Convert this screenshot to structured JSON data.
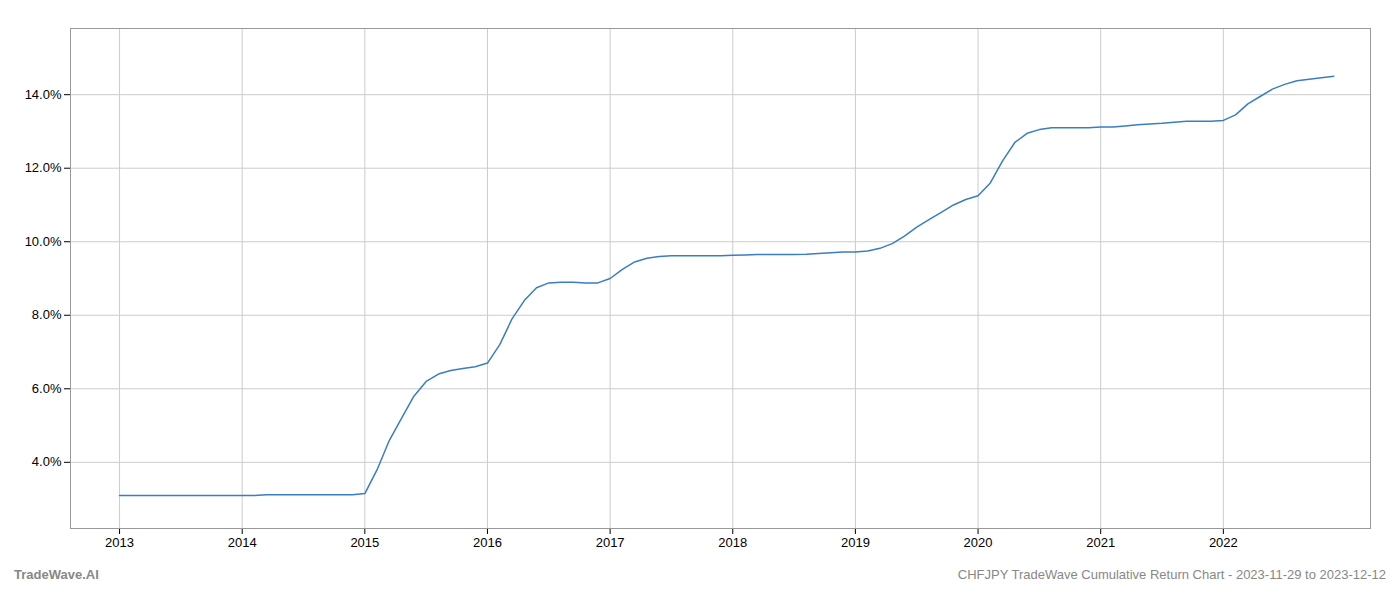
{
  "chart_data": {
    "type": "line",
    "annotations": [
      "TradeWave.AI",
      "CHFJPY TradeWave Cumulative Return Chart - 2023-11-29 to 2023-12-12"
    ],
    "x": [
      2013.0,
      2013.1,
      2013.2,
      2013.3,
      2013.4,
      2013.5,
      2013.6,
      2013.7,
      2013.8,
      2013.9,
      2014.0,
      2014.1,
      2014.2,
      2014.3,
      2014.4,
      2014.5,
      2014.6,
      2014.7,
      2014.8,
      2014.9,
      2015.0,
      2015.1,
      2015.2,
      2015.3,
      2015.4,
      2015.5,
      2015.6,
      2015.7,
      2015.8,
      2015.9,
      2016.0,
      2016.1,
      2016.2,
      2016.3,
      2016.4,
      2016.5,
      2016.6,
      2016.7,
      2016.8,
      2016.9,
      2017.0,
      2017.1,
      2017.2,
      2017.3,
      2017.4,
      2017.5,
      2017.6,
      2017.7,
      2017.8,
      2017.9,
      2018.0,
      2018.1,
      2018.2,
      2018.3,
      2018.4,
      2018.5,
      2018.6,
      2018.7,
      2018.8,
      2018.9,
      2019.0,
      2019.1,
      2019.2,
      2019.3,
      2019.4,
      2019.5,
      2019.6,
      2019.7,
      2019.8,
      2019.9,
      2020.0,
      2020.1,
      2020.2,
      2020.3,
      2020.4,
      2020.5,
      2020.6,
      2020.7,
      2020.8,
      2020.9,
      2021.0,
      2021.1,
      2021.2,
      2021.3,
      2021.4,
      2021.5,
      2021.6,
      2021.7,
      2021.8,
      2021.9,
      2022.0,
      2022.1,
      2022.2,
      2022.3,
      2022.4,
      2022.5,
      2022.6,
      2022.7,
      2022.8,
      2022.9
    ],
    "values": [
      3.1,
      3.1,
      3.1,
      3.1,
      3.1,
      3.1,
      3.1,
      3.1,
      3.1,
      3.1,
      3.1,
      3.1,
      3.12,
      3.12,
      3.12,
      3.12,
      3.12,
      3.12,
      3.12,
      3.12,
      3.15,
      3.8,
      4.6,
      5.2,
      5.8,
      6.2,
      6.4,
      6.5,
      6.55,
      6.6,
      6.7,
      7.2,
      7.9,
      8.4,
      8.75,
      8.88,
      8.9,
      8.9,
      8.88,
      8.88,
      9.0,
      9.25,
      9.45,
      9.55,
      9.6,
      9.62,
      9.62,
      9.62,
      9.62,
      9.62,
      9.63,
      9.64,
      9.65,
      9.65,
      9.65,
      9.65,
      9.66,
      9.68,
      9.7,
      9.72,
      9.72,
      9.75,
      9.82,
      9.95,
      10.15,
      10.4,
      10.6,
      10.8,
      11.0,
      11.15,
      11.25,
      11.6,
      12.2,
      12.7,
      12.95,
      13.05,
      13.1,
      13.1,
      13.1,
      13.1,
      13.12,
      13.12,
      13.15,
      13.18,
      13.2,
      13.22,
      13.25,
      13.28,
      13.28,
      13.28,
      13.3,
      13.45,
      13.75,
      13.95,
      14.15,
      14.28,
      14.38,
      14.42,
      14.46,
      14.5
    ],
    "color": "#3a7ebf",
    "xlim": [
      2012.6,
      2023.2
    ],
    "ylim": [
      2.2,
      15.8
    ],
    "xticks": [
      2013,
      2014,
      2015,
      2016,
      2017,
      2018,
      2019,
      2020,
      2021,
      2022
    ],
    "yticks": [
      {
        "value": 4.0,
        "label": "4.0%"
      },
      {
        "value": 6.0,
        "label": "6.0%"
      },
      {
        "value": 8.0,
        "label": "8.0%"
      },
      {
        "value": 10.0,
        "label": "10.0%"
      },
      {
        "value": 12.0,
        "label": "12.0%"
      },
      {
        "value": 14.0,
        "label": "14.0%"
      }
    ],
    "grid": true
  }
}
